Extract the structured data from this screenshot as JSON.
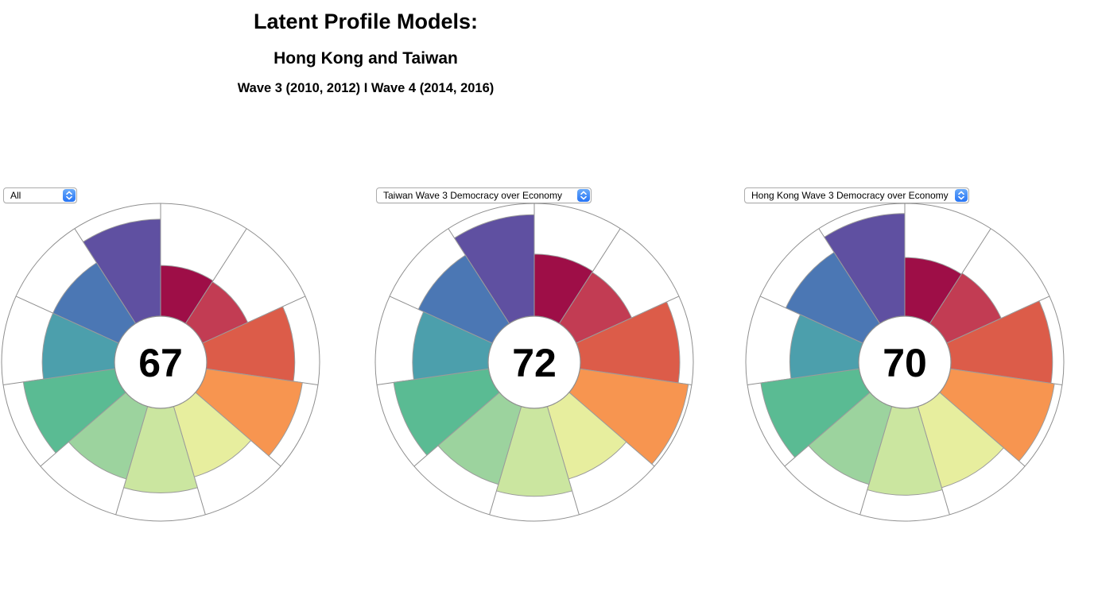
{
  "title": {
    "line1": "Latent Profile Models:",
    "line2": "Hong Kong and Taiwan",
    "line3": "Wave 3 (2010, 2012) I Wave 4 (2014, 2016)"
  },
  "palette": [
    "#9E0E47",
    "#C23C53",
    "#DC5C49",
    "#F79550",
    "#E7EE9E",
    "#CBE6A0",
    "#9CD39E",
    "#5ABB93",
    "#4C9FAC",
    "#4B77B4",
    "#5F50A1"
  ],
  "colors": {
    "line": "#8f8f8f",
    "wedge_stroke": "#9b9b9b",
    "inner_ring": "#8f8f8f",
    "score_text": "#000000",
    "select_border": "#acacac",
    "select_stepper_blue": "#2e7bf6",
    "background": "#ffffff"
  },
  "chart_data": [
    {
      "type": "radial-bar",
      "variant": "aster-plot",
      "selected_option": "All",
      "center_score": 67,
      "max_value": 100,
      "sector_count": 11,
      "start_angle_deg": 0,
      "direction": "clockwise",
      "values": [
        45,
        44,
        78,
        86,
        65,
        75,
        67,
        82,
        64,
        64,
        86
      ]
    },
    {
      "type": "radial-bar",
      "variant": "aster-plot",
      "selected_option": "Taiwan Wave 3 Democracy over Economy",
      "center_score": 72,
      "max_value": 100,
      "sector_count": 11,
      "start_angle_deg": 0,
      "direction": "clockwise",
      "values": [
        55,
        54,
        88,
        97,
        67,
        78,
        72,
        85,
        67,
        72,
        90
      ]
    },
    {
      "type": "radial-bar",
      "variant": "aster-plot",
      "selected_option": "Hong Kong Wave 3 Democracy over Economy",
      "center_score": 70,
      "max_value": 100,
      "sector_count": 11,
      "start_angle_deg": 0,
      "direction": "clockwise",
      "values": [
        52,
        53,
        90,
        93,
        75,
        77,
        72,
        88,
        61,
        75,
        91
      ]
    }
  ]
}
